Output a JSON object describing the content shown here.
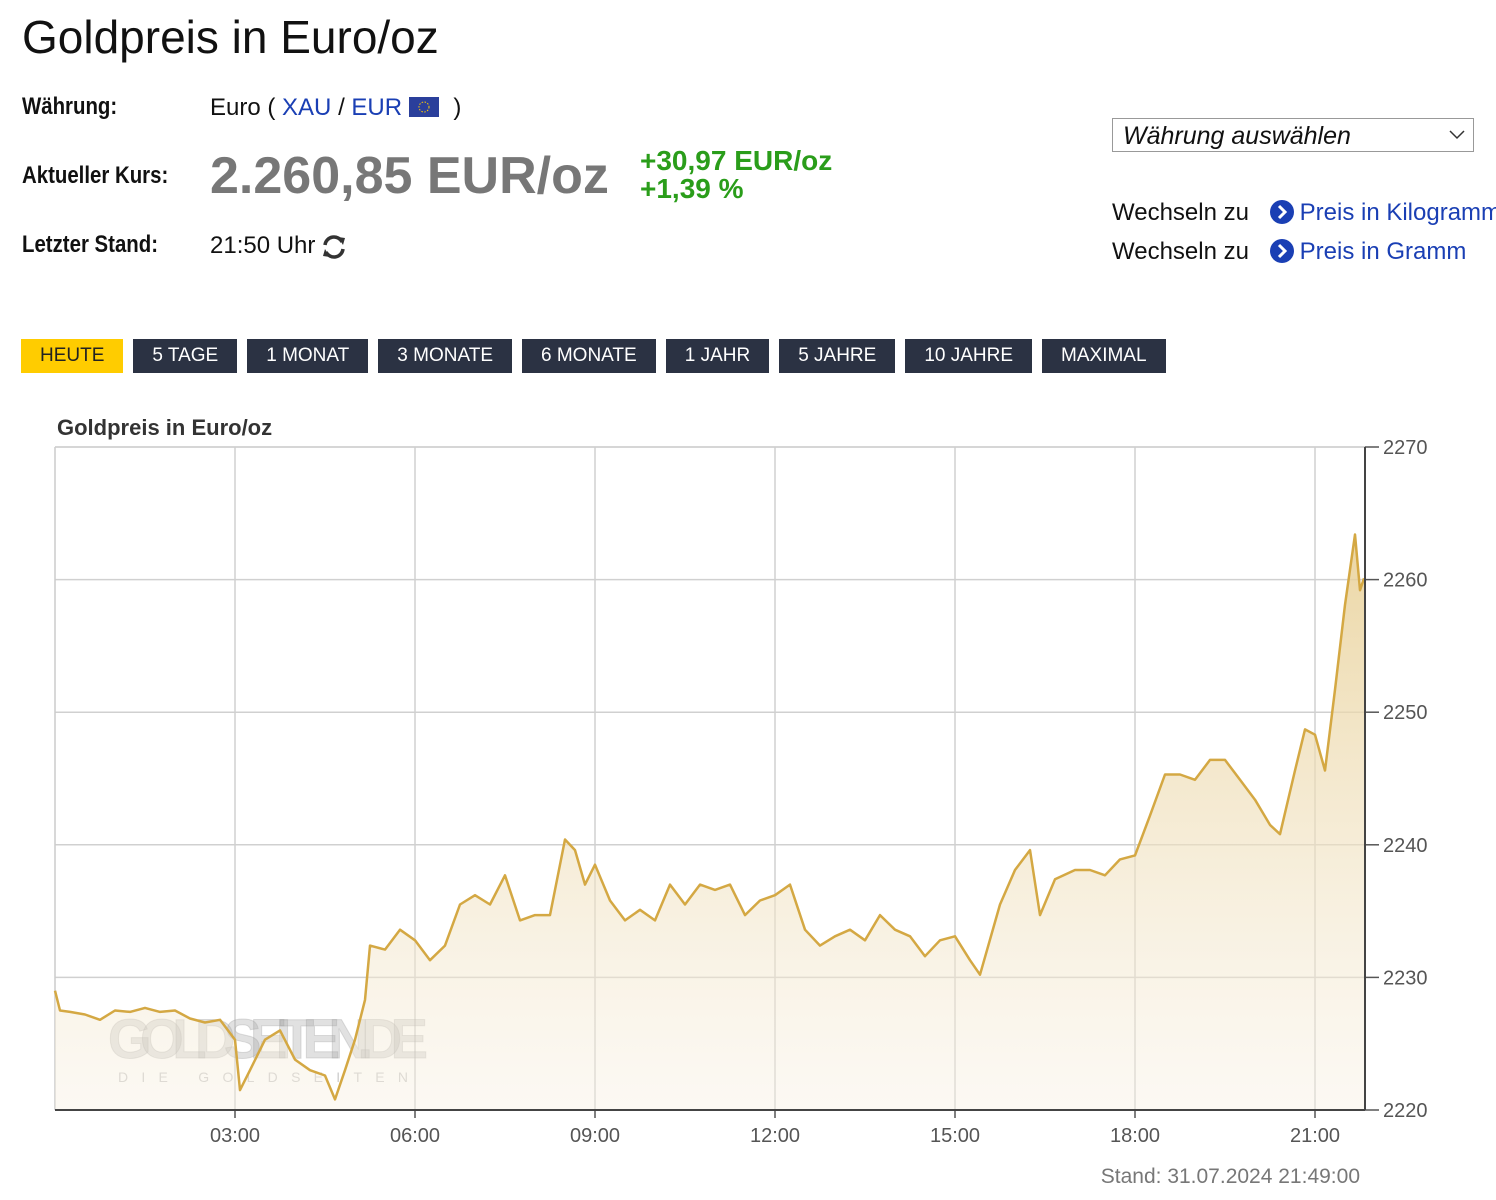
{
  "header": {
    "title": "Goldpreis in Euro/oz"
  },
  "info": {
    "currency_label": "Währung:",
    "currency_value": "Euro (",
    "xau": "XAU",
    "slash": "/",
    "eur": "EUR",
    "close": ")",
    "price_label": "Aktueller Kurs:",
    "price": "2.260,85 EUR/oz",
    "change_abs": "+30,97 EUR/oz",
    "change_pct": "+1,39 %",
    "time_label": "Letzter Stand:",
    "time": "21:50 Uhr"
  },
  "sidebar": {
    "select": "Währung auswählen",
    "links": [
      {
        "prefix": "Wechseln zu",
        "text": "Preis in Kilogramm"
      },
      {
        "prefix": "Wechseln zu",
        "text": "Preis in Gramm"
      }
    ]
  },
  "tabs": [
    "HEUTE",
    "5 TAGE",
    "1 MONAT",
    "3 MONATE",
    "6 MONATE",
    "1 JAHR",
    "5 JAHRE",
    "10 JAHRE",
    "MAXIMAL"
  ],
  "chart_data": {
    "type": "line",
    "title": "Goldpreis in Euro/oz",
    "color": "#d4a843",
    "x": [
      "00:00",
      "00:05",
      "00:15",
      "00:30",
      "00:45",
      "01:00",
      "01:15",
      "01:30",
      "01:45",
      "02:00",
      "02:15",
      "02:30",
      "02:45",
      "03:00",
      "03:05",
      "03:15",
      "03:30",
      "03:45",
      "04:00",
      "04:15",
      "04:30",
      "04:40",
      "04:50",
      "05:00",
      "05:10",
      "05:15",
      "05:30",
      "05:45",
      "06:00",
      "06:15",
      "06:30",
      "06:45",
      "07:00",
      "07:15",
      "07:30",
      "07:45",
      "08:00",
      "08:15",
      "08:30",
      "08:40",
      "08:50",
      "09:00",
      "09:15",
      "09:30",
      "09:45",
      "10:00",
      "10:15",
      "10:30",
      "10:45",
      "11:00",
      "11:15",
      "11:30",
      "11:45",
      "12:00",
      "12:15",
      "12:30",
      "12:45",
      "13:00",
      "13:15",
      "13:30",
      "13:45",
      "14:00",
      "14:15",
      "14:30",
      "14:45",
      "15:00",
      "15:15",
      "15:25",
      "15:45",
      "16:00",
      "16:15",
      "16:25",
      "16:40",
      "17:00",
      "17:15",
      "17:30",
      "17:45",
      "18:00",
      "18:15",
      "18:30",
      "18:45",
      "19:00",
      "19:15",
      "19:30",
      "19:45",
      "20:00",
      "20:15",
      "20:25",
      "20:40",
      "20:50",
      "21:00",
      "21:10",
      "21:20",
      "21:30",
      "21:40",
      "21:45",
      "21:49"
    ],
    "values": [
      2229.0,
      2227.5,
      2227.4,
      2227.2,
      2226.8,
      2227.5,
      2227.4,
      2227.7,
      2227.4,
      2227.5,
      2226.9,
      2226.6,
      2226.8,
      2225.3,
      2221.5,
      2223.0,
      2225.3,
      2226.0,
      2223.8,
      2223.0,
      2222.6,
      2220.8,
      2223.0,
      2225.3,
      2228.3,
      2232.4,
      2232.1,
      2233.6,
      2232.8,
      2231.3,
      2232.4,
      2235.5,
      2236.2,
      2235.5,
      2237.7,
      2234.3,
      2234.7,
      2234.7,
      2240.4,
      2239.6,
      2237.0,
      2238.5,
      2235.8,
      2234.3,
      2235.1,
      2234.3,
      2237.0,
      2235.5,
      2237.0,
      2236.6,
      2237.0,
      2234.7,
      2235.8,
      2236.2,
      2237.0,
      2233.6,
      2232.4,
      2233.1,
      2233.6,
      2232.8,
      2234.7,
      2233.6,
      2233.1,
      2231.6,
      2232.8,
      2233.1,
      2231.3,
      2230.2,
      2235.5,
      2238.1,
      2239.6,
      2234.7,
      2237.4,
      2238.1,
      2238.1,
      2237.7,
      2238.9,
      2239.2,
      2242.2,
      2245.3,
      2245.3,
      2244.9,
      2246.4,
      2246.4,
      2244.9,
      2243.4,
      2241.5,
      2240.8,
      2245.6,
      2248.7,
      2248.3,
      2245.6,
      2251.7,
      2258.1,
      2263.4,
      2259.2,
      2260.1
    ],
    "xlim": [
      "00:00",
      "21:50"
    ],
    "xticks": [
      "03:00",
      "06:00",
      "09:00",
      "12:00",
      "15:00",
      "18:00",
      "21:00"
    ],
    "ylim": [
      2220,
      2270
    ],
    "yticks": [
      2220,
      2230,
      2240,
      2250,
      2260,
      2270
    ],
    "grid": true,
    "footer": "Stand: 31.07.2024 21:49:00",
    "watermark": "GOLDSEITEN.DE",
    "watermark_sub": "DIE GOLDSEITEN"
  }
}
